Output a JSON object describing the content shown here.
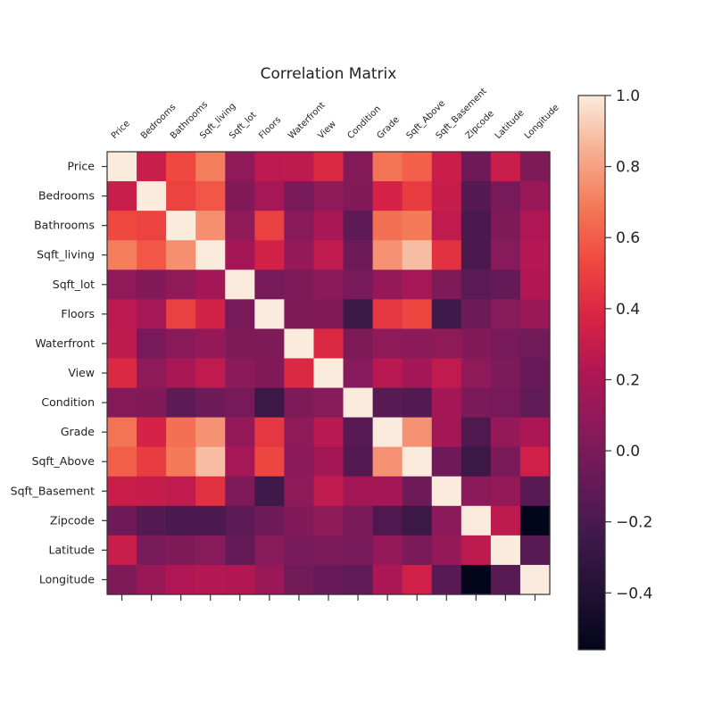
{
  "chart_data": {
    "type": "heatmap",
    "title": "Correlation Matrix",
    "labels": [
      "Price",
      "Bedrooms",
      "Bathrooms",
      "Sqft_living",
      "Sqft_lot",
      "Floors",
      "Waterfront",
      "View",
      "Condition",
      "Grade",
      "Sqft_Above",
      "Sqft_Basement",
      "Zipcode",
      "Latitude",
      "Longitude"
    ],
    "matrix": [
      [
        1.0,
        0.31,
        0.53,
        0.7,
        0.09,
        0.26,
        0.27,
        0.4,
        0.04,
        0.67,
        0.61,
        0.32,
        -0.05,
        0.31,
        0.02
      ],
      [
        0.31,
        1.0,
        0.51,
        0.58,
        0.03,
        0.18,
        -0.01,
        0.08,
        0.03,
        0.36,
        0.48,
        0.3,
        -0.15,
        -0.01,
        0.13
      ],
      [
        0.53,
        0.51,
        1.0,
        0.75,
        0.09,
        0.5,
        0.06,
        0.19,
        -0.12,
        0.66,
        0.69,
        0.28,
        -0.2,
        0.02,
        0.22
      ],
      [
        0.7,
        0.58,
        0.75,
        1.0,
        0.17,
        0.35,
        0.1,
        0.28,
        -0.06,
        0.76,
        0.88,
        0.44,
        -0.2,
        0.05,
        0.24
      ],
      [
        0.09,
        0.03,
        0.09,
        0.17,
        1.0,
        -0.01,
        0.02,
        0.07,
        -0.01,
        0.11,
        0.18,
        0.02,
        -0.13,
        -0.09,
        0.23
      ],
      [
        0.26,
        0.18,
        0.5,
        0.35,
        -0.01,
        1.0,
        0.02,
        0.03,
        -0.26,
        0.46,
        0.52,
        -0.25,
        -0.06,
        0.05,
        0.13
      ],
      [
        0.27,
        -0.01,
        0.06,
        0.1,
        0.02,
        0.02,
        1.0,
        0.4,
        0.02,
        0.08,
        0.07,
        0.08,
        0.03,
        -0.01,
        -0.04
      ],
      [
        0.4,
        0.08,
        0.19,
        0.28,
        0.07,
        0.03,
        0.4,
        1.0,
        0.05,
        0.25,
        0.17,
        0.28,
        0.08,
        0.01,
        -0.08
      ],
      [
        0.04,
        0.03,
        -0.12,
        -0.06,
        -0.01,
        -0.26,
        0.02,
        0.05,
        1.0,
        -0.14,
        -0.16,
        0.17,
        0.0,
        -0.01,
        -0.11
      ],
      [
        0.67,
        0.36,
        0.66,
        0.76,
        0.11,
        0.46,
        0.08,
        0.25,
        -0.14,
        1.0,
        0.76,
        0.17,
        -0.18,
        0.11,
        0.2
      ],
      [
        0.61,
        0.48,
        0.69,
        0.88,
        0.18,
        0.52,
        0.07,
        0.17,
        -0.16,
        0.76,
        1.0,
        -0.05,
        -0.26,
        0.0,
        0.34
      ],
      [
        0.32,
        0.3,
        0.28,
        0.44,
        0.02,
        -0.25,
        0.08,
        0.28,
        0.17,
        0.17,
        -0.05,
        1.0,
        0.07,
        0.11,
        -0.14
      ],
      [
        -0.05,
        -0.15,
        -0.2,
        -0.2,
        -0.13,
        -0.06,
        0.03,
        0.08,
        0.0,
        -0.18,
        -0.26,
        0.07,
        1.0,
        0.27,
        -0.56
      ],
      [
        0.31,
        -0.01,
        0.02,
        0.05,
        -0.09,
        0.05,
        -0.01,
        0.01,
        -0.01,
        0.11,
        0.0,
        0.11,
        0.27,
        1.0,
        -0.14
      ],
      [
        0.02,
        0.13,
        0.22,
        0.24,
        0.23,
        0.13,
        -0.04,
        -0.08,
        -0.11,
        0.2,
        0.34,
        -0.14,
        -0.56,
        -0.14,
        1.0
      ]
    ],
    "colorbar": {
      "min": -0.56,
      "max": 1.0,
      "ticks": [
        "-0.4",
        "-0.2",
        "0.0",
        "0.2",
        "0.4",
        "0.6",
        "0.8",
        "1.0"
      ],
      "colormap": "rocket"
    },
    "grid": false
  }
}
